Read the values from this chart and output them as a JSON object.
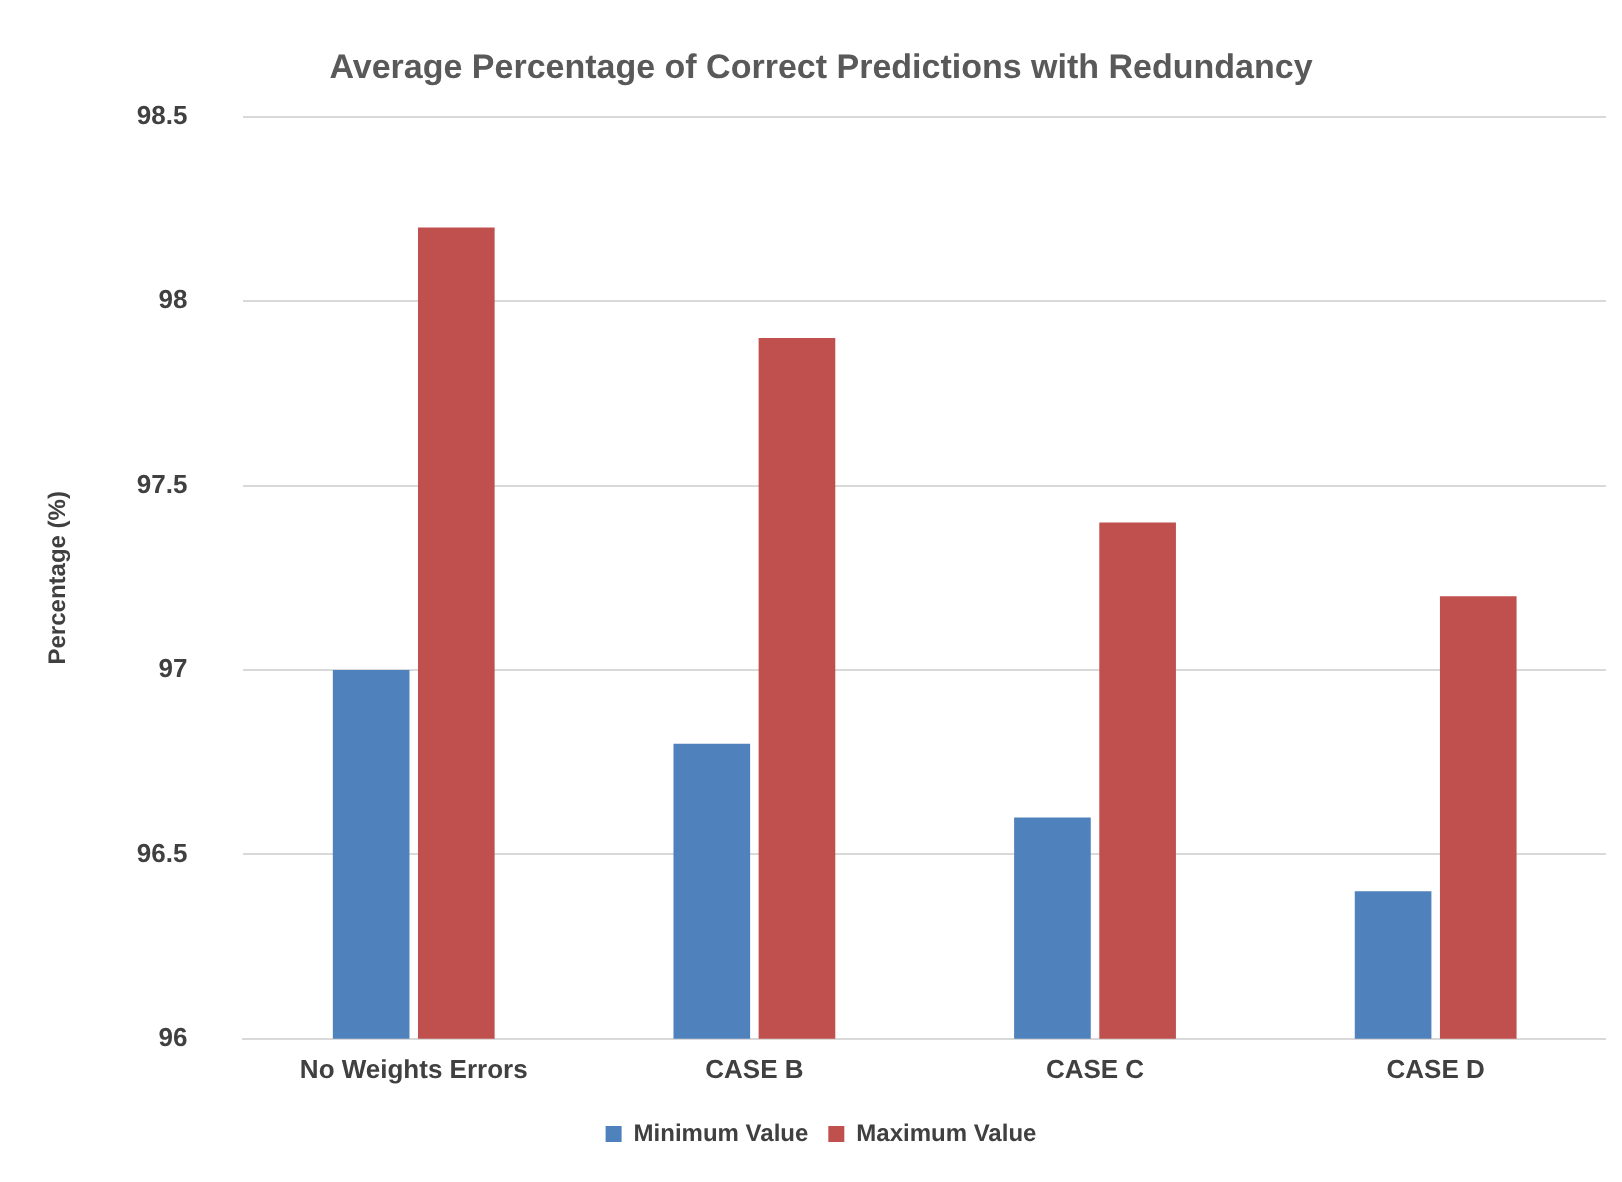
{
  "chart_data": {
    "type": "bar",
    "title": "Average Percentage of Correct Predictions with Redundancy",
    "ylabel": "Percentage (%)",
    "categories": [
      "No Weights Errors",
      "CASE B",
      "CASE C",
      "CASE D"
    ],
    "series": [
      {
        "name": "Minimum Value",
        "color": "#4f81bd",
        "values": [
          97.0,
          96.8,
          96.6,
          96.4
        ]
      },
      {
        "name": "Maximum Value",
        "color": "#c0504d",
        "values": [
          98.2,
          97.9,
          97.4,
          97.2
        ]
      }
    ],
    "ylim": [
      96,
      98.5
    ],
    "yticks": [
      96,
      96.5,
      97,
      97.5,
      98,
      98.5
    ],
    "grid": "y",
    "legend": "bottom"
  }
}
